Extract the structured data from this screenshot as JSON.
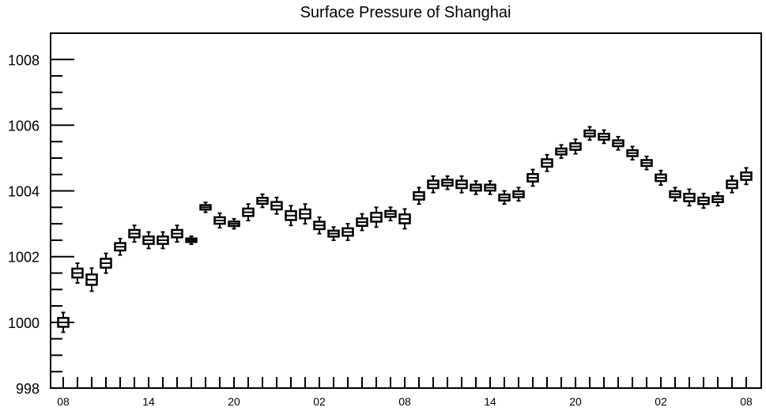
{
  "chart_data": {
    "type": "boxplot",
    "title": "Surface Pressure of Shanghai",
    "xlabel": "",
    "ylabel": "",
    "ylim": [
      998,
      1008.8
    ],
    "y_ticks": [
      "998",
      "1000",
      "1002",
      "1004",
      "1006",
      "1008"
    ],
    "x_tick_labels": [
      "08",
      "14",
      "20",
      "02",
      "08",
      "14",
      "20",
      "02",
      "08"
    ],
    "x_tick_every": 6,
    "n_hours": 49,
    "grid": false,
    "series": [
      {
        "values": [
          1000.0,
          1001.5,
          1001.3,
          1001.8,
          1002.3,
          1002.7,
          1002.5,
          1002.5,
          1002.7,
          1002.5,
          1003.5,
          1003.1,
          1003.0,
          1003.35,
          1003.7,
          1003.55,
          1003.25,
          1003.3,
          1002.95,
          1002.7,
          1002.75,
          1003.05,
          1003.2,
          1003.3,
          1003.15,
          1003.85,
          1004.2,
          1004.25,
          1004.2,
          1004.1,
          1004.1,
          1003.8,
          1003.9,
          1004.4,
          1004.85,
          1005.2,
          1005.35,
          1005.75,
          1005.65,
          1005.45,
          1005.15,
          1004.85,
          1004.4,
          1003.9,
          1003.8,
          1003.7,
          1003.75,
          1004.2,
          1004.45
        ],
        "spread": [
          0.3,
          0.3,
          0.35,
          0.3,
          0.25,
          0.25,
          0.25,
          0.25,
          0.25,
          0.12,
          0.15,
          0.22,
          0.15,
          0.25,
          0.2,
          0.25,
          0.3,
          0.3,
          0.25,
          0.2,
          0.25,
          0.25,
          0.3,
          0.2,
          0.3,
          0.25,
          0.25,
          0.2,
          0.25,
          0.2,
          0.2,
          0.2,
          0.2,
          0.25,
          0.25,
          0.2,
          0.22,
          0.2,
          0.2,
          0.2,
          0.2,
          0.2,
          0.22,
          0.2,
          0.25,
          0.22,
          0.2,
          0.25,
          0.25
        ]
      }
    ]
  }
}
